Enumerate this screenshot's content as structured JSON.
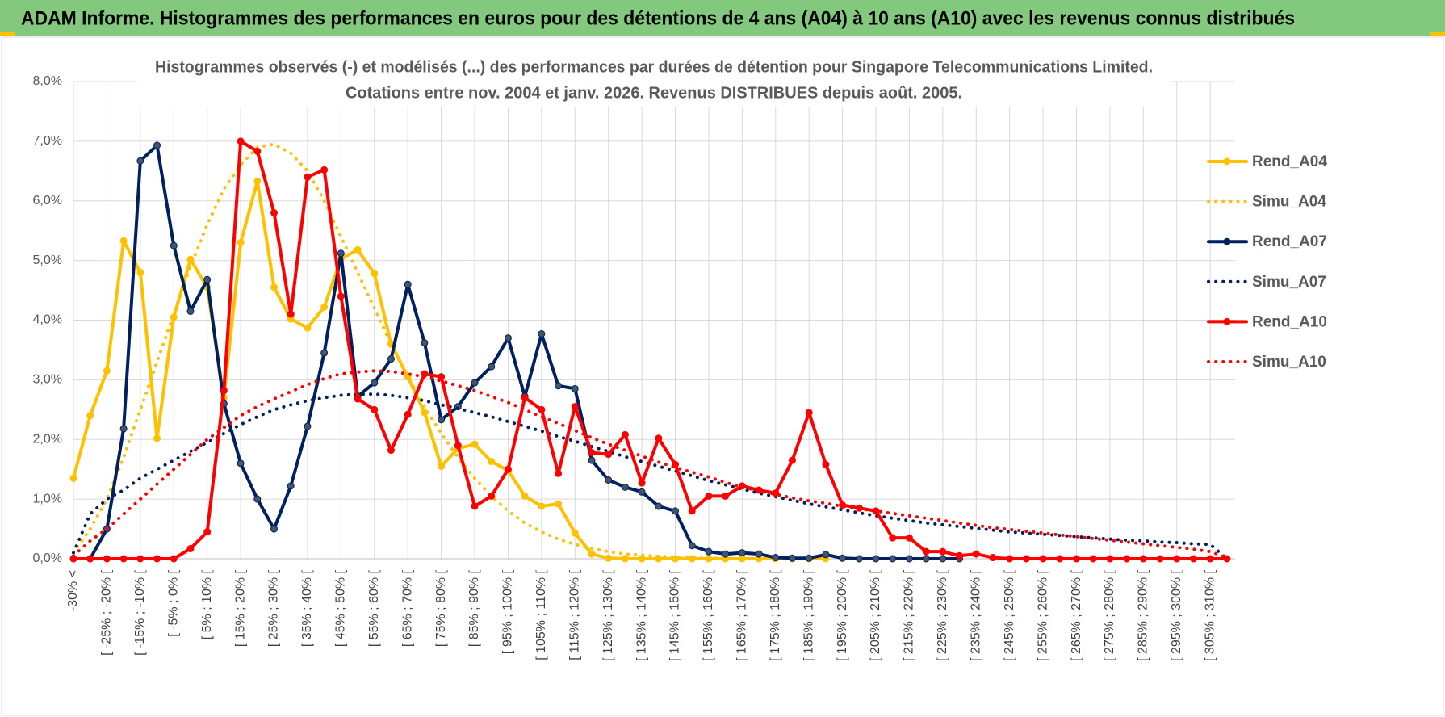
{
  "banner": "ADAM Informe. Histogrammes des performances en euros pour des détentions de 4 ans (A04) à 10 ans (A10) avec les revenus connus distribués",
  "chart_data": {
    "type": "line",
    "title": "Histogrammes observés (-) et modélisés (...) des performances par durées de détention pour Singapore Telecommunications Limited.",
    "subtitle": "Cotations entre nov. 2004 et janv. 2026. Revenus DISTRIBUES depuis août. 2005.",
    "categories": [
      "-30% <",
      null,
      "[ -25% ; -20% [",
      null,
      "[ -15% ; -10% [",
      null,
      "[ -5% ; 0% [",
      null,
      "[ 5% ; 10% [",
      null,
      "[ 15% ; 20% [",
      null,
      "[ 25% ; 30% [",
      null,
      "[ 35% ; 40% [",
      null,
      "[ 45% ; 50% [",
      null,
      "[ 55% ; 60% [",
      null,
      "[ 65% ; 70% [",
      null,
      "[ 75% ; 80% [",
      null,
      "[ 85% ; 90% [",
      null,
      "[ 95% ; 100% [",
      null,
      "[ 105% ; 110% [",
      null,
      "[ 115% ; 120% [",
      null,
      "[ 125% ; 130% [",
      null,
      "[ 135% ; 140% [",
      null,
      "[ 145% ; 150% [",
      null,
      "[ 155% ; 160% [",
      null,
      "[ 165% ; 170% [",
      null,
      "[ 175% ; 180% [",
      null,
      "[ 185% ; 190% [",
      null,
      "[ 195% ; 200% [",
      null,
      "[ 205% ; 210% [",
      null,
      "[ 215% ; 220% [",
      null,
      "[ 225% ; 230% [",
      null,
      "[ 235% ; 240% [",
      null,
      "[ 245% ; 250% [",
      null,
      "[ 255% ; 260% [",
      null,
      "[ 265% ; 270% [",
      null,
      "[ 275% ; 280% [",
      null,
      "[ 285% ; 290% [",
      null,
      "[ 295% ; 300% [",
      null,
      "[ 305% ; 310% [",
      null
    ],
    "ylim": [
      0,
      8
    ],
    "yticks": [
      {
        "value": 0,
        "label": "0,0%"
      },
      {
        "value": 1,
        "label": "1,0%"
      },
      {
        "value": 2,
        "label": "2,0%"
      },
      {
        "value": 3,
        "label": "3,0%"
      },
      {
        "value": 4,
        "label": "4,0%"
      },
      {
        "value": 5,
        "label": "5,0%"
      },
      {
        "value": 6,
        "label": "6,0%"
      },
      {
        "value": 7,
        "label": "7,0%"
      },
      {
        "value": 8,
        "label": "8,0%"
      }
    ],
    "grid": true,
    "legend": "right",
    "series": [
      {
        "name": "Rend_A04",
        "color": "#ffc000",
        "style": "solid",
        "markers": true,
        "values": [
          1.35,
          2.4,
          3.15,
          5.33,
          4.8,
          2.02,
          4.05,
          5.02,
          4.55,
          2.7,
          5.3,
          6.33,
          4.55,
          4.02,
          3.87,
          4.22,
          5.03,
          5.18,
          4.78,
          3.6,
          3.05,
          2.45,
          1.55,
          1.85,
          1.92,
          1.63,
          1.48,
          1.05,
          0.88,
          0.92,
          0.43,
          0.08,
          0.01,
          0,
          0,
          0,
          0,
          0,
          0,
          0,
          0,
          0,
          0,
          0,
          0,
          0,
          null,
          null,
          null,
          null,
          null,
          null,
          null,
          null,
          null,
          null,
          null,
          null,
          null,
          null,
          null,
          null,
          null,
          null,
          null,
          null,
          null,
          null,
          null,
          null
        ]
      },
      {
        "name": "Simu_A04",
        "color": "#ffc000",
        "style": "dotted",
        "markers": false,
        "values": [
          0.1,
          0.5,
          1.0,
          1.7,
          2.5,
          3.3,
          4.1,
          4.9,
          5.6,
          6.2,
          6.6,
          6.9,
          6.95,
          6.8,
          6.5,
          6.0,
          5.4,
          4.8,
          4.2,
          3.6,
          3.05,
          2.55,
          2.1,
          1.7,
          1.35,
          1.05,
          0.8,
          0.6,
          0.45,
          0.33,
          0.24,
          0.17,
          0.12,
          0.08,
          0.06,
          0.04,
          0.03,
          0.02,
          0.01,
          0.01,
          0,
          0,
          0,
          0,
          0,
          0,
          null,
          null,
          null,
          null,
          null,
          null,
          null,
          null,
          null,
          null,
          null,
          null,
          null,
          null,
          null,
          null,
          null,
          null,
          null,
          null,
          null,
          null,
          null,
          null
        ]
      },
      {
        "name": "Rend_A07",
        "color": "#002060",
        "style": "solid",
        "markers": true,
        "values": [
          0,
          0,
          0.5,
          2.18,
          6.67,
          6.93,
          5.25,
          4.15,
          4.68,
          2.6,
          1.6,
          1.0,
          0.5,
          1.22,
          2.22,
          3.45,
          5.12,
          2.72,
          2.95,
          3.35,
          4.6,
          3.62,
          2.33,
          2.55,
          2.95,
          3.22,
          3.7,
          2.72,
          3.77,
          2.9,
          2.85,
          1.65,
          1.32,
          1.2,
          1.12,
          0.88,
          0.8,
          0.22,
          0.12,
          0.08,
          0.1,
          0.08,
          0.02,
          0.01,
          0.01,
          0.07,
          0.01,
          0,
          0,
          0,
          0,
          0,
          0,
          0,
          null,
          null,
          null,
          null,
          null,
          null,
          null,
          null,
          null,
          null,
          null,
          null,
          null,
          null,
          null,
          null
        ]
      },
      {
        "name": "Simu_A07",
        "color": "#002060",
        "style": "dotted",
        "markers": false,
        "values": [
          0.1,
          0.75,
          1.0,
          1.15,
          1.35,
          1.5,
          1.65,
          1.8,
          1.95,
          2.1,
          2.25,
          2.38,
          2.5,
          2.58,
          2.65,
          2.7,
          2.74,
          2.76,
          2.76,
          2.74,
          2.7,
          2.65,
          2.58,
          2.52,
          2.45,
          2.38,
          2.3,
          2.22,
          2.14,
          2.05,
          1.97,
          1.88,
          1.8,
          1.71,
          1.63,
          1.55,
          1.47,
          1.39,
          1.31,
          1.24,
          1.17,
          1.1,
          1.04,
          0.98,
          0.92,
          0.87,
          0.82,
          0.77,
          0.72,
          0.68,
          0.64,
          0.6,
          0.57,
          0.54,
          0.51,
          0.48,
          0.45,
          0.43,
          0.41,
          0.39,
          0.37,
          0.35,
          0.33,
          0.31,
          0.3,
          0.28,
          0.27,
          0.25,
          0.24,
          0
        ]
      },
      {
        "name": "Rend_A10",
        "color": "#ff0000",
        "style": "solid",
        "markers": true,
        "values": [
          0,
          0,
          0,
          0,
          0,
          0,
          0,
          0.17,
          0.45,
          2.82,
          7.0,
          6.83,
          5.8,
          4.1,
          6.4,
          6.52,
          4.4,
          2.68,
          2.5,
          1.82,
          2.42,
          3.1,
          3.05,
          1.9,
          0.88,
          1.05,
          1.5,
          2.7,
          2.5,
          1.43,
          2.55,
          1.78,
          1.75,
          2.08,
          1.27,
          2.02,
          1.58,
          0.8,
          1.05,
          1.05,
          1.22,
          1.15,
          1.1,
          1.65,
          2.45,
          1.58,
          0.9,
          0.85,
          0.8,
          0.35,
          0.35,
          0.12,
          0.12,
          0.05,
          0.08,
          0.02,
          0,
          0,
          0,
          0,
          0,
          0,
          0,
          0,
          0,
          0,
          0,
          0,
          0,
          0
        ]
      },
      {
        "name": "Simu_A10",
        "color": "#ff0000",
        "style": "dotted",
        "markers": false,
        "values": [
          0.05,
          0.3,
          0.5,
          0.75,
          1.0,
          1.25,
          1.5,
          1.75,
          2.0,
          2.2,
          2.4,
          2.55,
          2.68,
          2.8,
          2.92,
          3.02,
          3.1,
          3.13,
          3.15,
          3.14,
          3.1,
          3.05,
          2.98,
          2.9,
          2.82,
          2.72,
          2.62,
          2.5,
          2.38,
          2.27,
          2.15,
          2.03,
          1.92,
          1.82,
          1.72,
          1.62,
          1.53,
          1.45,
          1.37,
          1.28,
          1.2,
          1.14,
          1.08,
          1.02,
          0.97,
          0.93,
          0.88,
          0.84,
          0.8,
          0.76,
          0.72,
          0.68,
          0.64,
          0.6,
          0.56,
          0.52,
          0.49,
          0.46,
          0.43,
          0.4,
          0.37,
          0.34,
          0.31,
          0.28,
          0.25,
          0.22,
          0.19,
          0.16,
          0.12,
          0.02
        ]
      }
    ]
  }
}
